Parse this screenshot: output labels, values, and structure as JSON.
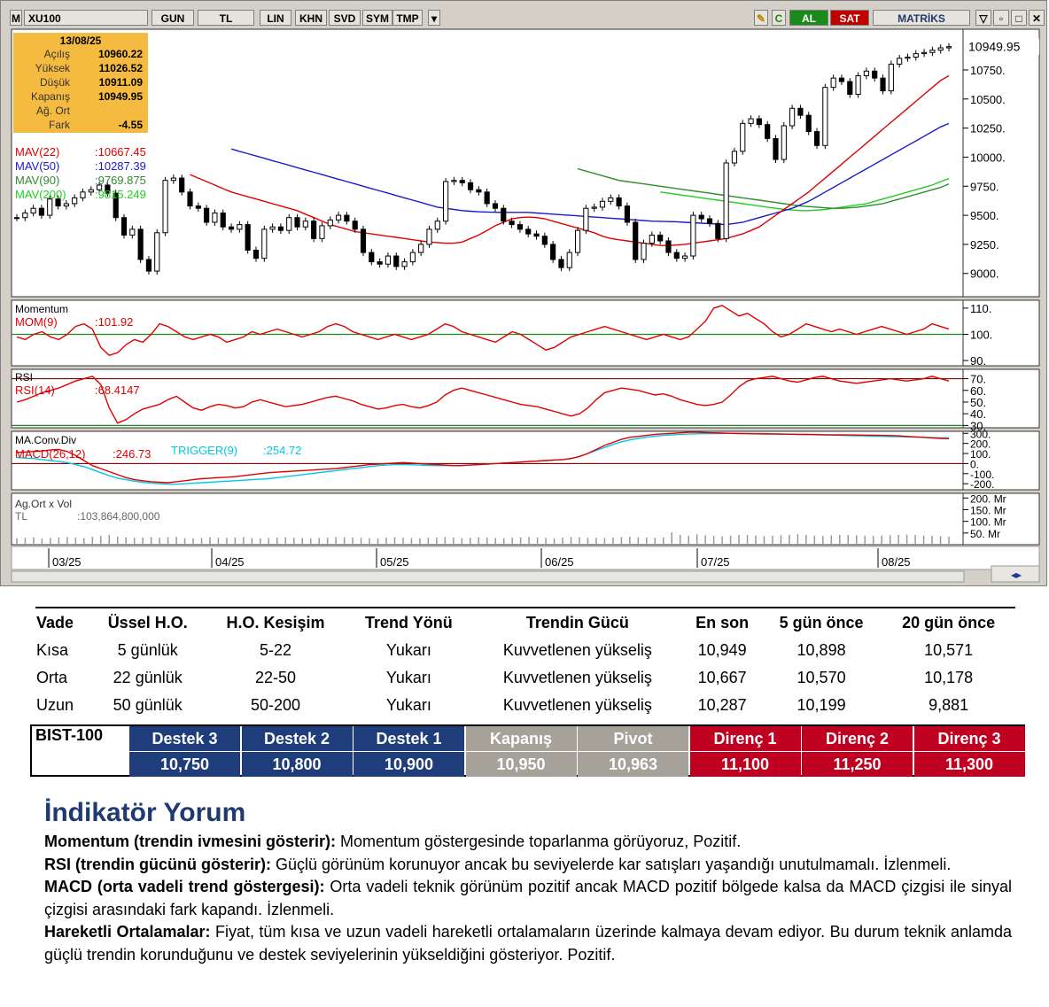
{
  "toolbar": {
    "symbol": "XU100",
    "buttons": [
      "GUN",
      "TL",
      "LIN",
      "KHN",
      "SVD",
      "SYM",
      "TMP"
    ],
    "buy": "AL",
    "sell": "SAT",
    "brand": "MATRİKS"
  },
  "infobox": {
    "date": "13/08/25",
    "rows": [
      {
        "k": "Açılış",
        "v": "10960.22"
      },
      {
        "k": "Yüksek",
        "v": "11026.52"
      },
      {
        "k": "Düşük",
        "v": "10911.09"
      },
      {
        "k": "Kapanış",
        "v": "10949.95"
      },
      {
        "k": "Ağ. Ort",
        "v": ""
      },
      {
        "k": "Fark",
        "v": "-4.55"
      }
    ]
  },
  "chart_data": [
    {
      "type": "candlestick",
      "title": "",
      "x_labels": [
        "03/25",
        "04/25",
        "05/25",
        "06/25",
        "07/25",
        "08/25"
      ],
      "y_ticks": [
        9000,
        9250,
        9500,
        9750,
        10000,
        10250,
        10500,
        10750
      ],
      "ylim": [
        8800,
        11100
      ],
      "last_price_label": "10949.95",
      "close": [
        9480,
        9520,
        9560,
        9500,
        9640,
        9580,
        9600,
        9650,
        9700,
        9720,
        9760,
        9690,
        9480,
        9330,
        9380,
        9120,
        9020,
        9350,
        9800,
        9820,
        9700,
        9580,
        9560,
        9440,
        9520,
        9400,
        9380,
        9420,
        9200,
        9130,
        9380,
        9400,
        9370,
        9480,
        9400,
        9450,
        9300,
        9410,
        9460,
        9500,
        9450,
        9380,
        9180,
        9100,
        9080,
        9150,
        9060,
        9100,
        9180,
        9250,
        9380,
        9450,
        9790,
        9800,
        9780,
        9720,
        9700,
        9600,
        9560,
        9450,
        9420,
        9380,
        9340,
        9320,
        9250,
        9120,
        9050,
        9180,
        9370,
        9560,
        9570,
        9620,
        9650,
        9580,
        9440,
        9120,
        9260,
        9330,
        9280,
        9180,
        9130,
        9150,
        9500,
        9470,
        9430,
        9300,
        9950,
        10050,
        10290,
        10330,
        10280,
        10160,
        9980,
        10270,
        10420,
        10360,
        10220,
        10100,
        10600,
        10680,
        10650,
        10540,
        10700,
        10740,
        10680,
        10570,
        10800,
        10850,
        10860,
        10890,
        10900,
        10920,
        10940,
        10950
      ],
      "ma": [
        {
          "name": "MAV(22)",
          "value": "10667.45",
          "color": "#e00000"
        },
        {
          "name": "MAV(50)",
          "value": "10287.39",
          "color": "#1a1acc"
        },
        {
          "name": "MAV(90)",
          "value": "9769.875",
          "color": "#2e8b2e"
        },
        {
          "name": "MAV(200)",
          "value": "9815.249",
          "color": "#22cc22"
        }
      ],
      "ma22": [
        9850,
        9820,
        9790,
        9760,
        9730,
        9700,
        9680,
        9660,
        9640,
        9620,
        9600,
        9580,
        9560,
        9540,
        9510,
        9480,
        9450,
        9420,
        9400,
        9380,
        9360,
        9350,
        9340,
        9330,
        9320,
        9310,
        9300,
        9290,
        9280,
        9270,
        9265,
        9260,
        9260,
        9270,
        9300,
        9330,
        9370,
        9410,
        9440,
        9470,
        9480,
        9485,
        9480,
        9470,
        9450,
        9430,
        9410,
        9390,
        9370,
        9350,
        9320,
        9300,
        9290,
        9280,
        9270,
        9260,
        9250,
        9240,
        9240,
        9245,
        9250,
        9260,
        9270,
        9280,
        9290,
        9300,
        9320,
        9340,
        9370,
        9400,
        9450,
        9500,
        9550,
        9600,
        9650,
        9700,
        9760,
        9820,
        9880,
        9940,
        10000,
        10060,
        10120,
        10180,
        10240,
        10300,
        10360,
        10420,
        10480,
        10540,
        10600,
        10660,
        10700
      ],
      "ma50": [
        10070,
        10050,
        10030,
        10010,
        9990,
        9970,
        9950,
        9930,
        9910,
        9890,
        9870,
        9850,
        9830,
        9810,
        9790,
        9770,
        9750,
        9730,
        9710,
        9690,
        9670,
        9650,
        9630,
        9610,
        9590,
        9570,
        9560,
        9550,
        9540,
        9535,
        9530,
        9528,
        9526,
        9525,
        9525,
        9525,
        9525,
        9520,
        9515,
        9510,
        9505,
        9500,
        9495,
        9490,
        9485,
        9480,
        9475,
        9470,
        9465,
        9460,
        9455,
        9450,
        9448,
        9446,
        9444,
        9440,
        9436,
        9432,
        9428,
        9424,
        9420,
        9430,
        9440,
        9460,
        9480,
        9500,
        9520,
        9540,
        9560,
        9590,
        9620,
        9660,
        9700,
        9740,
        9780,
        9820,
        9860,
        9900,
        9940,
        9980,
        10020,
        10060,
        10100,
        10140,
        10180,
        10220,
        10260,
        10290
      ],
      "ma90": [
        9900,
        9880,
        9860,
        9840,
        9820,
        9800,
        9790,
        9780,
        9770,
        9760,
        9750,
        9740,
        9730,
        9720,
        9710,
        9700,
        9690,
        9680,
        9670,
        9660,
        9650,
        9640,
        9630,
        9620,
        9610,
        9600,
        9590,
        9580,
        9575,
        9570,
        9565,
        9560,
        9560,
        9565,
        9570,
        9580,
        9590,
        9600,
        9620,
        9640,
        9660,
        9680,
        9700,
        9720,
        9740,
        9770
      ],
      "ma200": [
        9700,
        9690,
        9680,
        9670,
        9660,
        9650,
        9640,
        9630,
        9620,
        9610,
        9600,
        9590,
        9580,
        9570,
        9560,
        9550,
        9545,
        9540,
        9540,
        9545,
        9550,
        9560,
        9570,
        9580,
        9590,
        9600,
        9620,
        9640,
        9660,
        9680,
        9700,
        9720,
        9740,
        9760,
        9790,
        9815
      ]
    },
    {
      "type": "line",
      "title": "Momentum",
      "series_label": "MOM(9)",
      "value": "101.92",
      "y_ticks": [
        90,
        100,
        110
      ],
      "ylim": [
        88,
        113
      ],
      "ref": 100,
      "values": [
        99,
        98,
        100,
        101,
        99,
        98,
        100,
        103,
        104,
        102,
        95,
        92,
        93,
        96,
        98,
        97,
        100,
        104,
        103,
        101,
        99,
        98,
        99,
        100,
        99,
        97,
        98,
        99,
        101,
        100,
        101,
        102,
        101,
        100,
        99,
        100,
        101,
        103,
        104,
        103,
        101,
        100,
        99,
        98,
        99,
        100,
        99,
        98,
        99,
        100,
        102,
        104,
        103,
        101,
        100,
        99,
        98,
        97,
        99,
        101,
        100,
        98,
        96,
        94,
        95,
        97,
        99,
        100,
        101,
        102,
        103,
        102,
        101,
        100,
        99,
        98,
        99,
        100,
        99,
        98,
        99,
        102,
        105,
        110,
        111,
        109,
        107,
        108,
        106,
        104,
        101,
        99,
        100,
        102,
        104,
        103,
        102,
        101,
        102,
        101,
        100,
        101,
        102,
        103,
        102,
        101,
        100,
        101,
        102,
        104,
        103,
        102
      ]
    },
    {
      "type": "line",
      "title": "RSI",
      "series_label": "RSI(14)",
      "value": "68.4147",
      "y_ticks": [
        30,
        40,
        50,
        60,
        70
      ],
      "ylim": [
        28,
        78
      ],
      "ref": 70,
      "values": [
        50,
        52,
        55,
        58,
        60,
        62,
        65,
        68,
        70,
        72,
        65,
        45,
        32,
        35,
        40,
        44,
        46,
        48,
        52,
        55,
        50,
        45,
        43,
        46,
        48,
        47,
        45,
        46,
        50,
        52,
        50,
        48,
        46,
        47,
        48,
        50,
        52,
        54,
        55,
        53,
        51,
        48,
        46,
        44,
        45,
        47,
        48,
        46,
        45,
        47,
        50,
        56,
        60,
        62,
        60,
        58,
        56,
        54,
        52,
        50,
        48,
        47,
        46,
        44,
        42,
        40,
        38,
        40,
        45,
        52,
        58,
        60,
        62,
        61,
        60,
        58,
        56,
        57,
        55,
        52,
        50,
        48,
        47,
        48,
        50,
        56,
        63,
        68,
        70,
        71,
        72,
        70,
        68,
        67,
        69,
        71,
        72,
        70,
        68,
        67,
        66,
        67,
        68,
        69,
        70,
        69,
        68,
        69,
        70,
        72,
        70,
        68
      ]
    },
    {
      "type": "line",
      "title": "MA.Conv.Div",
      "series": [
        {
          "name": "MACD(26,12)",
          "value": "246.73",
          "color": "#e00000"
        },
        {
          "name": "TRIGGER(9)",
          "value": "254.72",
          "color": "#00c8e6"
        }
      ],
      "y_ticks": [
        "300",
        "200",
        "100",
        "0",
        "-100",
        "-200"
      ],
      "ylim": [
        -260,
        320
      ],
      "ref": 0,
      "macd": [
        110,
        115,
        120,
        125,
        135,
        140,
        120,
        80,
        30,
        -20,
        -50,
        -80,
        -110,
        -140,
        -160,
        -170,
        -180,
        -185,
        -190,
        -180,
        -170,
        -160,
        -150,
        -145,
        -140,
        -135,
        -130,
        -120,
        -110,
        -100,
        -90,
        -85,
        -80,
        -75,
        -70,
        -65,
        -60,
        -55,
        -50,
        -40,
        -30,
        -20,
        -10,
        -5,
        0,
        5,
        10,
        5,
        0,
        -5,
        -10,
        -15,
        -20,
        -20,
        -15,
        -10,
        -5,
        0,
        5,
        10,
        15,
        20,
        25,
        30,
        35,
        40,
        50,
        70,
        100,
        140,
        180,
        210,
        240,
        260,
        270,
        280,
        290,
        295,
        300,
        305,
        310,
        310,
        308,
        305,
        302,
        300,
        298,
        296,
        295,
        294,
        293,
        292,
        291,
        290,
        289,
        288,
        287,
        286,
        285,
        284,
        283,
        282,
        281,
        280,
        278,
        275,
        270,
        265,
        260,
        255,
        250,
        247
      ],
      "trigger": [
        60,
        55,
        50,
        40,
        30,
        20,
        10,
        -10,
        -30,
        -60,
        -90,
        -120,
        -145,
        -160,
        -175,
        -185,
        -195,
        -200,
        -205,
        -205,
        -200,
        -195,
        -190,
        -185,
        -180,
        -175,
        -170,
        -165,
        -160,
        -155,
        -150,
        -140,
        -130,
        -120,
        -110,
        -100,
        -90,
        -80,
        -70,
        -60,
        -50,
        -40,
        -30,
        -20,
        -15,
        -10,
        -10,
        -12,
        -15,
        -18,
        -20,
        -20,
        -20,
        -18,
        -15,
        -10,
        -5,
        0,
        5,
        10,
        15,
        20,
        25,
        30,
        35,
        40,
        50,
        70,
        100,
        130,
        160,
        190,
        215,
        235,
        250,
        262,
        272,
        280,
        285,
        290,
        293,
        295,
        297,
        298,
        299,
        300,
        300,
        300,
        299,
        298,
        296,
        294,
        292,
        290,
        288,
        286,
        284,
        282,
        280,
        278,
        276,
        274,
        272,
        270,
        268,
        266,
        264,
        262,
        260,
        258,
        256,
        255
      ]
    },
    {
      "type": "bar",
      "title": "Ag.Ort x Vol",
      "series_label": "TL",
      "value": "103,864,800,000",
      "y_ticks": [
        "200. Mr",
        "150. Mr",
        "100. Mr",
        "50. Mr"
      ],
      "values": [
        80,
        85,
        90,
        78,
        82,
        88,
        92,
        86,
        80,
        95,
        110,
        120,
        100,
        90,
        85,
        88,
        92,
        84,
        90,
        96,
        80,
        78,
        82,
        90,
        86,
        84,
        88,
        92,
        80,
        76,
        82,
        86,
        90,
        84,
        80,
        78,
        82,
        86,
        92,
        90,
        88,
        84,
        80,
        78,
        86,
        90,
        84,
        82,
        80,
        84,
        88,
        92,
        86,
        80,
        84,
        90,
        88,
        82,
        80,
        86,
        90,
        94,
        88,
        84,
        80,
        86,
        92,
        90,
        86,
        84,
        82,
        88,
        92,
        96,
        90,
        86,
        84,
        88,
        150,
        120,
        110,
        130,
        115,
        108,
        102,
        110,
        120,
        118,
        112,
        106,
        110,
        116,
        120,
        130,
        118,
        112,
        108,
        114,
        120,
        118,
        114,
        110,
        108,
        112,
        116,
        120,
        124,
        118,
        112,
        108,
        104,
        100
      ]
    }
  ],
  "trend_table": {
    "headers": [
      "Vade",
      "Üssel H.O.",
      "H.O. Kesişim",
      "Trend Yönü",
      "Trendin Gücü",
      "En son",
      "5 gün önce",
      "20 gün önce"
    ],
    "rows": [
      [
        "Kısa",
        "5 günlük",
        "5-22",
        "Yukarı",
        "Kuvvetlenen yükseliş",
        "10,949",
        "10,898",
        "10,571"
      ],
      [
        "Orta",
        "22 günlük",
        "22-50",
        "Yukarı",
        "Kuvvetlenen yükseliş",
        "10,667",
        "10,570",
        "10,178"
      ],
      [
        "Uzun",
        "50 günlük",
        "50-200",
        "Yukarı",
        "Kuvvetlenen yükseliş",
        "10,287",
        "10,199",
        "9,881"
      ]
    ]
  },
  "levels": {
    "label": "BIST-100",
    "items": [
      {
        "h": "Destek 3",
        "v": "10,750",
        "color": "#1f3d7a"
      },
      {
        "h": "Destek 2",
        "v": "10,800",
        "color": "#1f3d7a"
      },
      {
        "h": "Destek 1",
        "v": "10,900",
        "color": "#1f3d7a"
      },
      {
        "h": "Kapanış",
        "v": "10,950",
        "color": "#a6a29a"
      },
      {
        "h": "Pivot",
        "v": "10,963",
        "color": "#a6a29a"
      },
      {
        "h": "Direnç 1",
        "v": "11,100",
        "color": "#c00020"
      },
      {
        "h": "Direnç 2",
        "v": "11,250",
        "color": "#c00020"
      },
      {
        "h": "Direnç 3",
        "v": "11,300",
        "color": "#c00020"
      }
    ]
  },
  "commentary": {
    "title": "İndikatör Yorum",
    "items": [
      {
        "label": "Momentum (trendin ivmesini gösterir):",
        "text": " Momentum göstergesinde toparlanma görüyoruz, Pozitif."
      },
      {
        "label": "RSI (trendin gücünü gösterir):",
        "text": " Güçlü görünüm korunuyor ancak bu seviyelerde kar satışları yaşandığı unutulmamalı. İzlenmeli."
      },
      {
        "label": "MACD (orta vadeli trend göstergesi):",
        "text": " Orta vadeli teknik görünüm pozitif ancak MACD pozitif bölgede kalsa da MACD çizgisi ile sinyal çizgisi arasındaki fark kapandı. İzlenmeli."
      },
      {
        "label": "Hareketli Ortalamalar:",
        "text": " Fiyat, tüm kısa ve uzun vadeli hareketli ortalamaların üzerinde kalmaya devam ediyor. Bu durum teknik anlamda güçlü trendin korunduğunu ve destek seviyelerinin yükseldiğini gösteriyor. Pozitif."
      }
    ]
  }
}
